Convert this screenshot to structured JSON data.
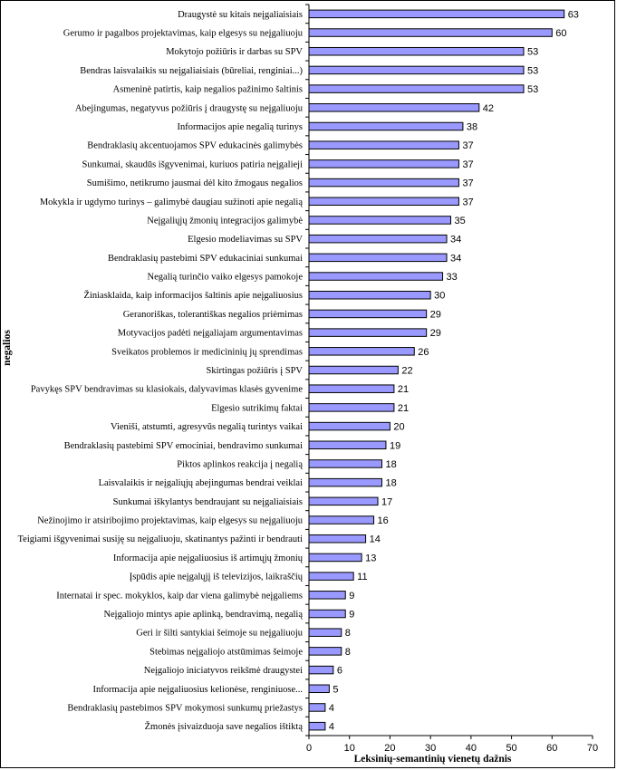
{
  "chart_data": {
    "type": "bar",
    "orientation": "horizontal",
    "categories": [
      "Draugystė su kitais neįgaliaisiais",
      "Gerumo ir pagalbos projektavimas, kaip elgesys su neįgaliuoju",
      "Mokytojo požiūris ir darbas su SPV",
      "Bendras laisvalaikis su neįgaliaisiais (būreliai, renginiai...)",
      "Asmeninė patirtis, kaip negalios pažinimo šaltinis",
      "Abejingumas, negatyvus požiūris į draugystę su neįgaliuoju",
      "Informacijos apie negalią turinys",
      "Bendraklasių akcentuojamos SPV edukacinės galimybės",
      "Sunkumai, skaudūs išgyvenimai, kuriuos patiria neįgalieji",
      "Sumišimo, netikrumo jausmai dėl kito žmogaus negalios",
      "Mokykla ir ugdymo turinys – galimybė daugiau sužinoti apie negalią",
      "Neįgaliųjų žmonių integracijos galimybė",
      "Elgesio modeliavimas su SPV",
      "Bendraklasių pastebimi SPV edukaciniai sunkumai",
      "Negalią turinčio vaiko elgesys pamokoje",
      "Žiniasklaida, kaip informacijos šaltinis apie neįgaliuosius",
      "Geranoriškas, tolerantiškas negalios priėmimas",
      "Motyvacijos padėti neįgaliajam argumentavimas",
      "Sveikatos problemos ir medicininių jų sprendimas",
      "Skirtingas požiūris į SPV",
      "Pavykęs SPV bendravimas su klasiokais, dalyvavimas klasės gyvenime",
      "Elgesio sutrikimų faktai",
      "Vieniši, atstumti, agresyvūs negalią turintys vaikai",
      "Bendraklasių pastebimi SPV emociniai, bendravimo sunkumai",
      "Piktos aplinkos reakcija į negalią",
      "Laisvalaikis ir neįgaliųjų abejingumas bendrai veiklai",
      "Sunkumai iškylantys bendraujant su neįgaliaisiais",
      "Nežinojimo ir atsiribojimo projektavimas, kaip elgesys su neįgaliuoju",
      "Teigiami išgyvenimai susiję su neįgaliuoju, skatinantys pažinti ir bendrauti",
      "Informacija apie neįgaliuosius iš artimųjų žmonių",
      "Įspūdis apie neįgalųjį iš televizijos, laikraščių",
      "Internatai ir spec. mokyklos, kaip dar viena galimybė neįgaliems",
      "Neįgaliojo mintys apie aplinką, bendravimą, negalią",
      "Geri ir šilti santykiai šeimoje su neįgaliuoju",
      "Stebimas neįgaliojo atstūmimas šeimoje",
      "Neįgaliojo iniciatyvos reikšmė draugystei",
      "Informacija apie neįgaliuosius kelionėse, renginiuose...",
      "Bendraklasių pastebimos SPV mokymosi sunkumų priežastys",
      "Žmonės įsivaizduoja save negalios ištiktą"
    ],
    "values": [
      63,
      60,
      53,
      53,
      53,
      42,
      38,
      37,
      37,
      37,
      37,
      35,
      34,
      34,
      33,
      30,
      29,
      29,
      26,
      22,
      21,
      21,
      20,
      19,
      18,
      18,
      17,
      16,
      14,
      13,
      11,
      9,
      9,
      8,
      8,
      6,
      5,
      4,
      4
    ],
    "xlim": [
      0,
      70
    ],
    "xticks": [
      0,
      10,
      20,
      30,
      40,
      50,
      60,
      70
    ],
    "xlabel": "Leksinių-semantinių vienetų dažnis",
    "ylabel": "negalios",
    "bar_color": "#9999ff",
    "bar_edge": "#000000",
    "grid": false
  }
}
